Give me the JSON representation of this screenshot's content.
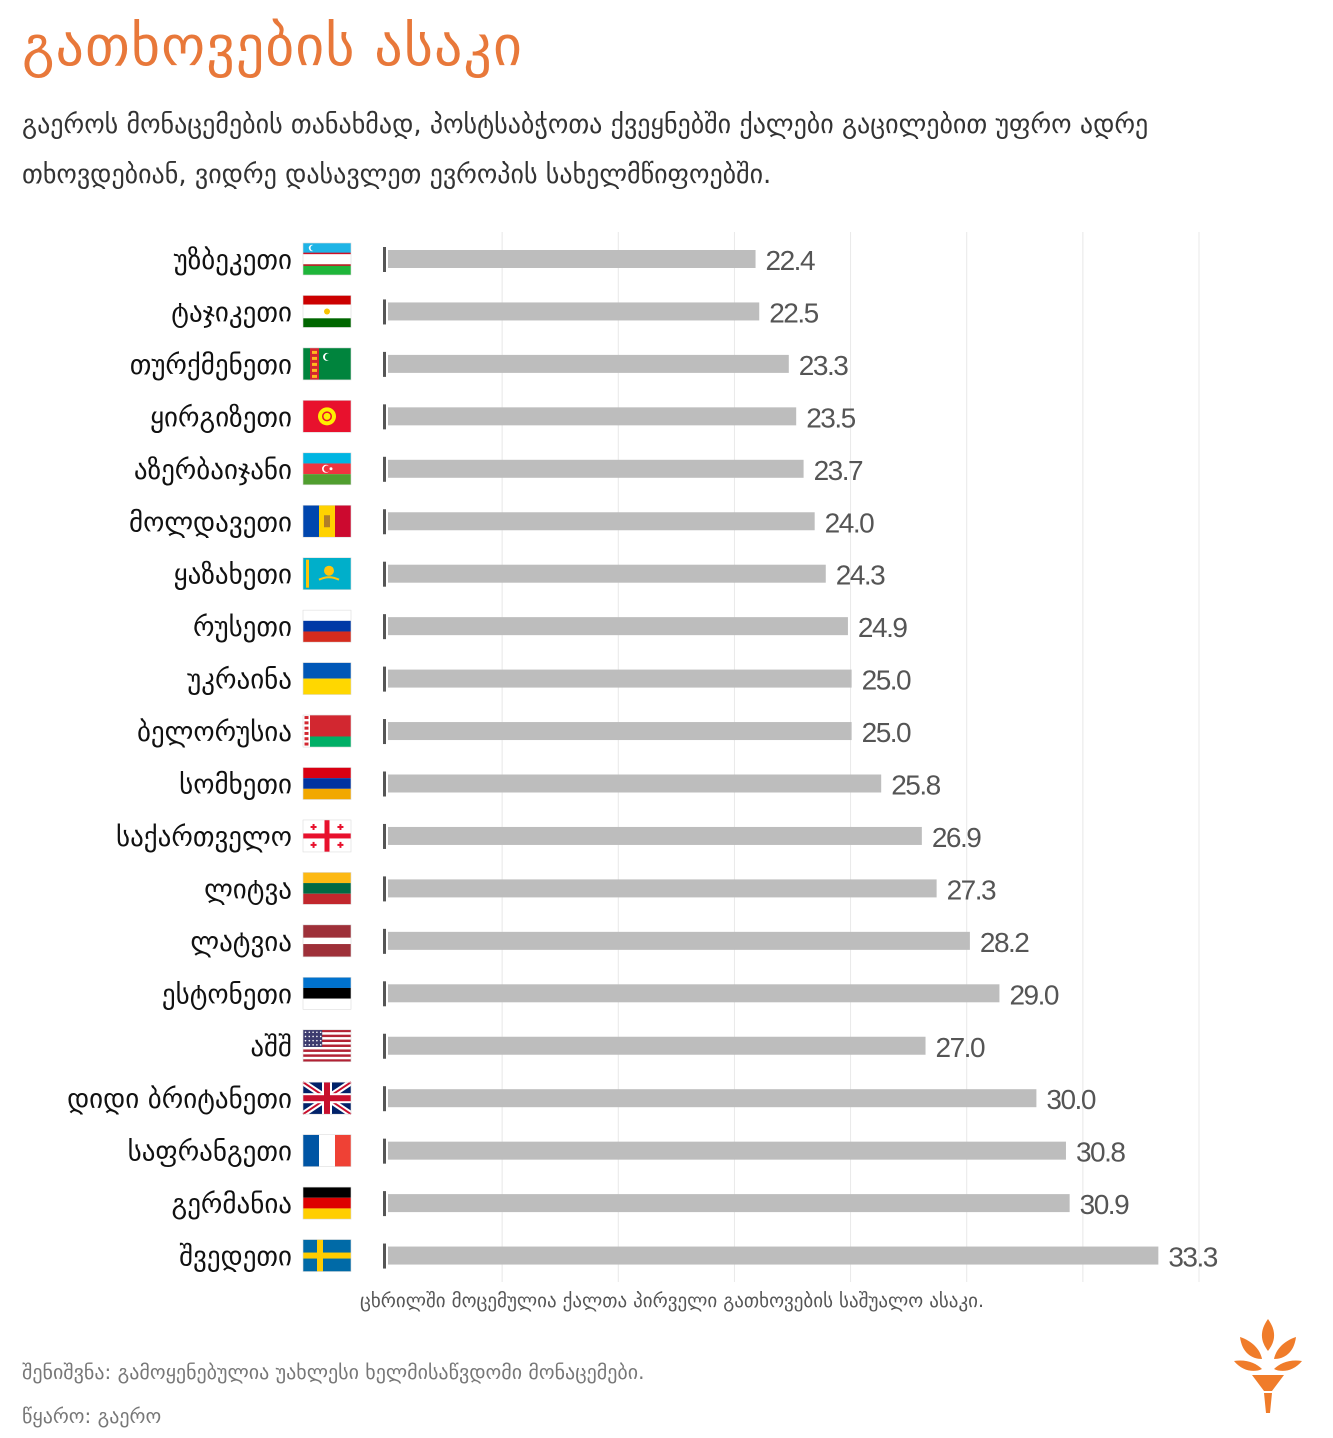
{
  "header": {
    "title": "გათხოვების ასაკი",
    "subtitle": "გაეროს მონაცემების თანახმად, პოსტსაბჭოთა ქვეყნებში ქალები გაცილებით უფრო ადრე თხოვდებიან, ვიდრე დასავლეთ ევროპის სახელმწიფოებში."
  },
  "chart_data": {
    "type": "bar",
    "orientation": "horizontal",
    "categories": [
      "უზბეკეთი",
      "ტაჯიკეთი",
      "თურქმენეთი",
      "ყირგიზეთი",
      "აზერბაიჯანი",
      "მოლდავეთი",
      "ყაზახეთი",
      "რუსეთი",
      "უკრაინა",
      "ბელორუსია",
      "სომხეთი",
      "საქართველო",
      "ლიტვა",
      "ლატვია",
      "ესტონეთი",
      "აშშ",
      "დიდი ბრიტანეთი",
      "საფრანგეთი",
      "გერმანია",
      "შვედეთი"
    ],
    "values": [
      22.4,
      22.5,
      23.3,
      23.5,
      23.7,
      24.0,
      24.3,
      24.9,
      25.0,
      25.0,
      25.8,
      26.9,
      27.3,
      28.2,
      29.0,
      27.0,
      30.0,
      30.8,
      30.9,
      33.3
    ],
    "value_labels": [
      "22.4",
      "22.5",
      "23.3",
      "23.5",
      "23.7",
      "24.0",
      "24.3",
      "24.9",
      "25.0",
      "25.0",
      "25.8",
      "26.9",
      "27.3",
      "28.2",
      "29.0",
      "27.0",
      "30.0",
      "30.8",
      "30.9",
      "33.3"
    ],
    "flags": [
      "uzbekistan-flag-icon",
      "tajikistan-flag-icon",
      "turkmenistan-flag-icon",
      "kyrgyzstan-flag-icon",
      "azerbaijan-flag-icon",
      "moldova-flag-icon",
      "kazakhstan-flag-icon",
      "russia-flag-icon",
      "ukraine-flag-icon",
      "belarus-flag-icon",
      "armenia-flag-icon",
      "georgia-flag-icon",
      "lithuania-flag-icon",
      "latvia-flag-icon",
      "estonia-flag-icon",
      "usa-flag-icon",
      "uk-flag-icon",
      "france-flag-icon",
      "germany-flag-icon",
      "sweden-flag-icon"
    ],
    "xlim": [
      12.4,
      34.4
    ],
    "grid": true,
    "colors": {
      "bar": "#bdbdbd",
      "grid": "#e8e8e8",
      "axis": "#555555",
      "value_label": "#555555"
    }
  },
  "caption": "ცხრილში მოცემულია ქალთა პირველი გათხოვების საშუალო ასაკი.",
  "footer": {
    "note": "შენიშვნა: გამოყენებულია უახლესი ხელმისაწვდომი მონაცემები.",
    "source": "წყარო: გაერო"
  },
  "branding": {
    "logo_icon": "rferl-torch-logo-icon",
    "color": "#f07c2a"
  }
}
